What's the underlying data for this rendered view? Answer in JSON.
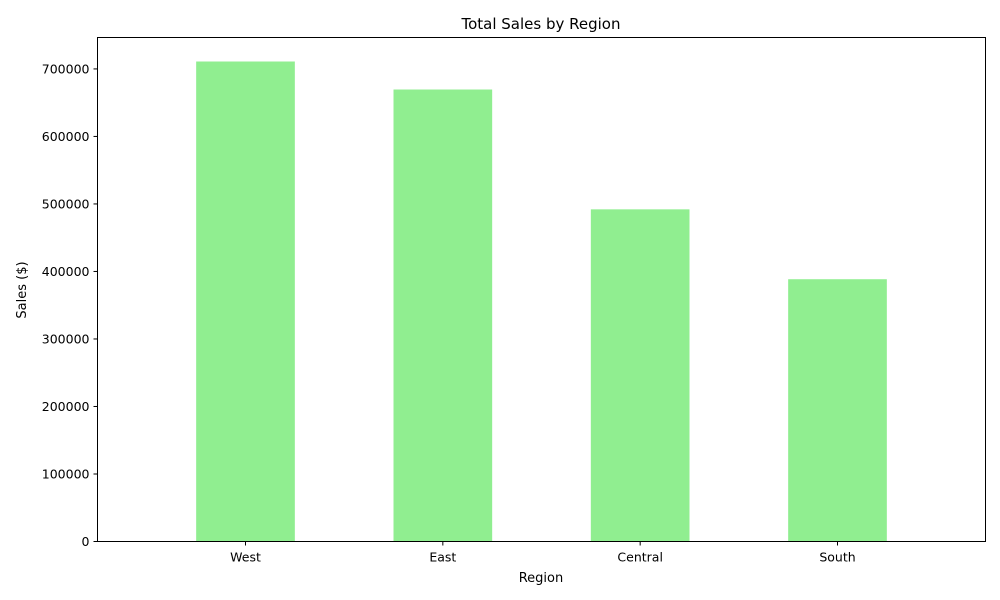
{
  "chart_data": {
    "type": "bar",
    "title": "Total Sales by Region",
    "xlabel": "Region",
    "ylabel": "Sales ($)",
    "categories": [
      "West",
      "East",
      "Central",
      "South"
    ],
    "values": [
      711000,
      669500,
      492000,
      388500
    ],
    "ylim": [
      0,
      746550
    ],
    "yticks": [
      0,
      100000,
      200000,
      300000,
      400000,
      500000,
      600000,
      700000
    ],
    "ytick_labels": [
      "0",
      "100000",
      "200000",
      "300000",
      "400000",
      "500000",
      "600000",
      "700000"
    ],
    "bar_color": "#90ee90",
    "grid": false,
    "legend": "none"
  }
}
